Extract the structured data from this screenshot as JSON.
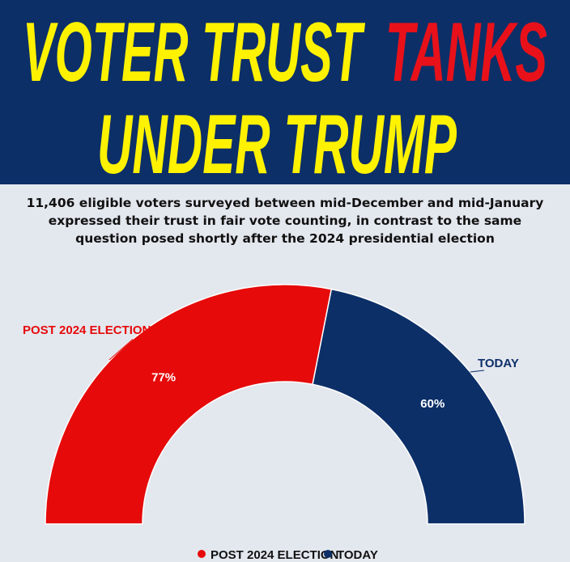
{
  "header": {
    "line1_part1": "VOTER TRUST",
    "line1_part2": "TANKS",
    "line2": "UNDER TRUMP"
  },
  "subtitle": "11,406 eligible voters surveyed between mid-December and mid-January expressed their trust in fair vote counting, in contrast to the same question posed shortly after the 2024 presidential election",
  "colors": {
    "banner": "#0c2f68",
    "headline_yellow": "#fff200",
    "headline_red": "#e8111a",
    "post_election": "#e60a0a",
    "today": "#0c2f68",
    "background": "#e3e7ee"
  },
  "chart_data": {
    "type": "pie",
    "style": "semi-donut",
    "series": [
      {
        "name": "POST 2024 ELECTION",
        "value": 77,
        "label": "77%",
        "color": "#e60a0a"
      },
      {
        "name": "TODAY",
        "value": 60,
        "label": "60%",
        "color": "#0c2f68"
      }
    ],
    "legend_position": "bottom-center"
  }
}
